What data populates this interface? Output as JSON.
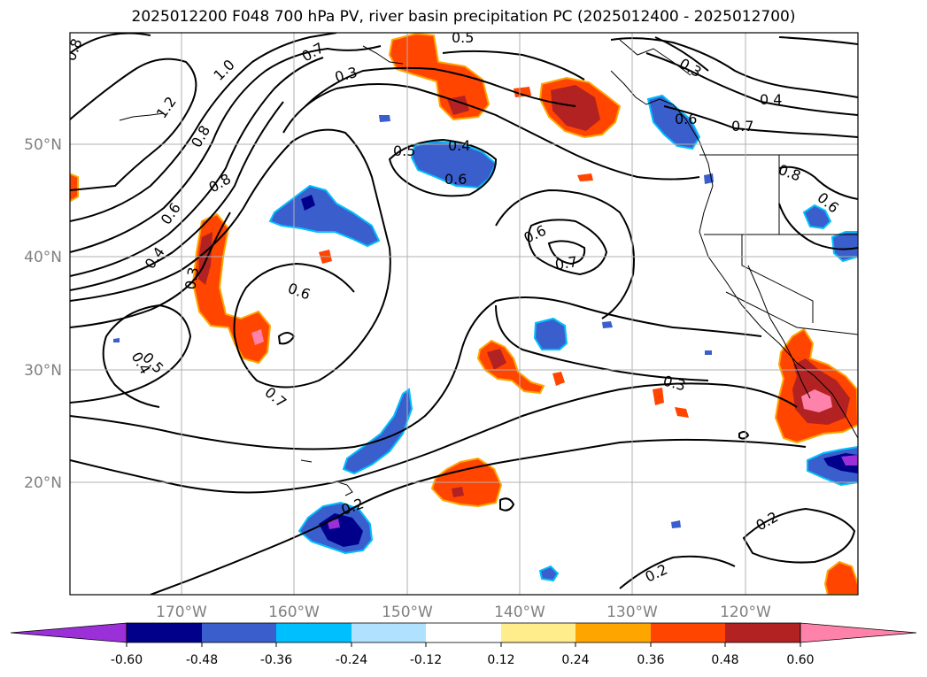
{
  "title": "2025012200 F048 700 hPa PV, river basin precipitation PC (2025012400 - 2025012700)",
  "map": {
    "lat_labels": [
      "50°N",
      "40°N",
      "30°N",
      "20°N"
    ],
    "lon_labels": [
      "170°W",
      "160°W",
      "150°W",
      "140°W",
      "130°W",
      "120°W"
    ],
    "contour_labels": [
      "0.8",
      "1.0",
      "1.2",
      "0.8",
      "0.7",
      "0.5",
      "0.3",
      "0.4",
      "0.5",
      "0.6",
      "0.6",
      "0.4",
      "0.3",
      "0.6",
      "0.7",
      "0.6",
      "0.7",
      "0.8",
      "0.6",
      "0.5",
      "0.4",
      "0.3",
      "0.4",
      "0.6",
      "0.7",
      "0.3",
      "0.8",
      "0.2",
      "0.2",
      "0.2"
    ],
    "grid_color": "#b0b0b0",
    "contour_color": "#000000"
  },
  "colorbar": {
    "ticks": [
      "-0.60",
      "-0.48",
      "-0.36",
      "-0.24",
      "-0.12",
      "0.12",
      "0.24",
      "0.36",
      "0.48",
      "0.60"
    ],
    "colors": [
      "#9b30d8",
      "#00008b",
      "#3a5fcd",
      "#00bfff",
      "#b0e2ff",
      "#ffffff",
      "#ffec8b",
      "#ffa500",
      "#ff4500",
      "#b22222",
      "#ff82ab"
    ]
  }
}
